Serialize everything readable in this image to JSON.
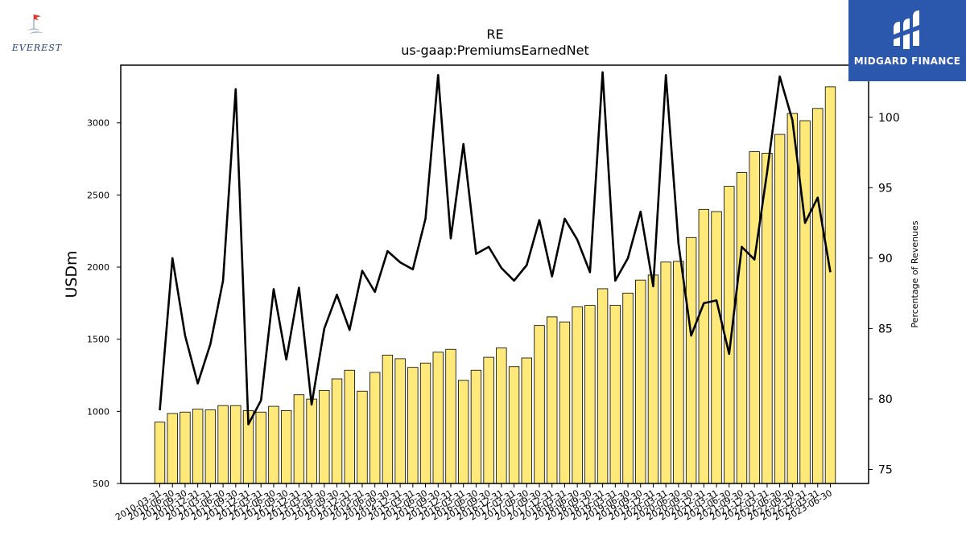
{
  "logos": {
    "left_text": "EVEREST",
    "right_text": "MIDGARD FINANCE"
  },
  "chart_data": {
    "type": "bar",
    "title": "RE",
    "subtitle": "us-gaap:PremiumsEarnedNet",
    "ylabel": "USDm",
    "y2label": "Percentage of Revenues",
    "ylim": [
      500,
      3400
    ],
    "y2lim": [
      74,
      103.7
    ],
    "yticks": [
      500,
      1000,
      1500,
      2000,
      2500,
      3000
    ],
    "y2ticks": [
      75,
      80,
      85,
      90,
      95,
      100
    ],
    "bar_color": "#ffe97a",
    "line_color": "#000000",
    "categories": [
      "2010-03-31",
      "2010-06-30",
      "2010-09-30",
      "2010-12-31",
      "2011-03-31",
      "2011-06-30",
      "2011-09-30",
      "2011-12-31",
      "2012-03-31",
      "2012-06-30",
      "2012-09-30",
      "2012-12-31",
      "2013-03-31",
      "2013-06-30",
      "2013-09-30",
      "2013-12-31",
      "2014-03-31",
      "2014-06-30",
      "2014-09-30",
      "2014-12-31",
      "2015-03-31",
      "2015-06-30",
      "2015-09-30",
      "2015-12-31",
      "2016-03-31",
      "2016-06-30",
      "2016-09-30",
      "2016-12-31",
      "2017-03-31",
      "2017-06-30",
      "2017-09-30",
      "2017-12-31",
      "2018-03-31",
      "2018-06-30",
      "2018-09-30",
      "2018-12-31",
      "2019-03-31",
      "2019-06-30",
      "2019-09-30",
      "2019-12-31",
      "2020-03-31",
      "2020-06-30",
      "2020-09-30",
      "2020-12-31",
      "2021-03-31",
      "2021-06-30",
      "2021-09-30",
      "2021-12-31",
      "2022-03-31",
      "2022-06-30",
      "2022-09-30",
      "2022-12-31",
      "2023-03-31",
      "2023-06-30"
    ],
    "series": [
      {
        "name": "PremiumsEarnedNet",
        "type": "bar",
        "axis": "left",
        "values": [
          925,
          985,
          995,
          1015,
          1010,
          1040,
          1040,
          1005,
          995,
          1035,
          1005,
          1115,
          1085,
          1145,
          1225,
          1285,
          1140,
          1270,
          1390,
          1365,
          1305,
          1335,
          1410,
          1430,
          1215,
          1285,
          1375,
          1440,
          1310,
          1370,
          1595,
          1655,
          1620,
          1725,
          1735,
          1850,
          1735,
          1820,
          1910,
          1945,
          2035,
          2040,
          2205,
          2400,
          2385,
          2560,
          2655,
          2800,
          2790,
          2920,
          3065,
          3015,
          3100,
          3250
        ]
      },
      {
        "name": "Percentage of Revenues",
        "type": "line",
        "axis": "right",
        "values": [
          79.2,
          90.0,
          84.5,
          81.1,
          83.9,
          88.4,
          102.0,
          78.2,
          79.9,
          87.8,
          82.8,
          87.9,
          79.6,
          85.0,
          87.4,
          84.9,
          89.1,
          87.6,
          90.5,
          89.7,
          89.2,
          92.8,
          103.0,
          91.4,
          98.1,
          90.3,
          90.8,
          89.3,
          88.4,
          89.5,
          92.7,
          88.7,
          92.8,
          91.3,
          89.0,
          103.2,
          88.4,
          90.0,
          93.3,
          88.0,
          103.0,
          91.0,
          84.5,
          86.8,
          87.0,
          83.2,
          90.8,
          89.9,
          96.1,
          102.9,
          99.8,
          92.5,
          94.3,
          89.0
        ]
      }
    ],
    "grid": false,
    "legend": "none"
  }
}
